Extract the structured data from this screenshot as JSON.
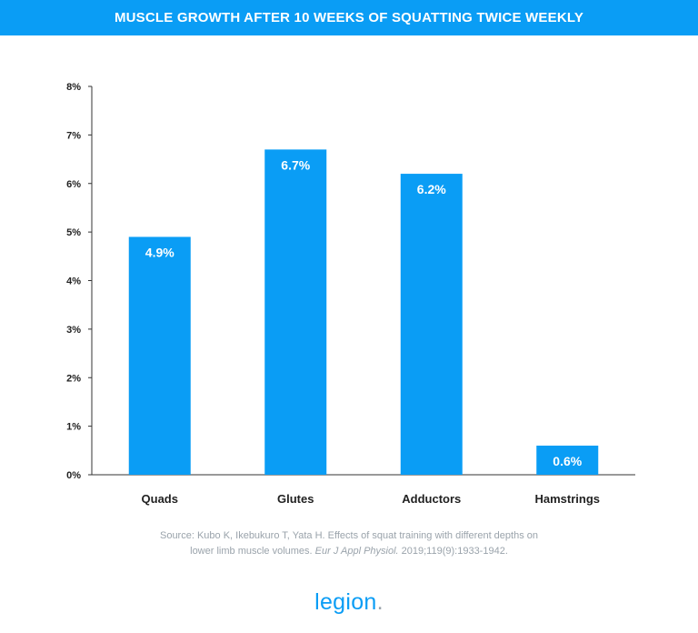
{
  "header": {
    "title": "MUSCLE GROWTH AFTER 10 WEEKS OF SQUATTING TWICE WEEKLY"
  },
  "colors": {
    "accent": "#0a9df5",
    "header_bg": "#0a9df5",
    "axis": "#333333",
    "source_text": "#9aa3ab"
  },
  "chart_data": {
    "type": "bar",
    "title": "MUSCLE GROWTH AFTER 10 WEEKS OF SQUATTING TWICE WEEKLY",
    "categories": [
      "Quads",
      "Glutes",
      "Adductors",
      "Hamstrings"
    ],
    "values": [
      4.9,
      6.7,
      6.2,
      0.6
    ],
    "value_labels": [
      "4.9%",
      "6.7%",
      "6.2%",
      "0.6%"
    ],
    "ylim": [
      0,
      8
    ],
    "yticks": [
      0,
      1,
      2,
      3,
      4,
      5,
      6,
      7,
      8
    ],
    "ytick_labels": [
      "0%",
      "1%",
      "2%",
      "3%",
      "4%",
      "5%",
      "6%",
      "7%",
      "8%"
    ],
    "xlabel": "",
    "ylabel": "",
    "grid": false,
    "bar_color": "#0a9df5"
  },
  "source": {
    "line1": "Source: Kubo K, Ikebukuro T, Yata H. Effects of squat training with different depths on",
    "line2_prefix": "lower limb muscle volumes. ",
    "line2_journal": "Eur J Appl Physiol.",
    "line2_suffix": " 2019;119(9):1933-1942."
  },
  "logo": {
    "text": "legion",
    "dot": "."
  }
}
